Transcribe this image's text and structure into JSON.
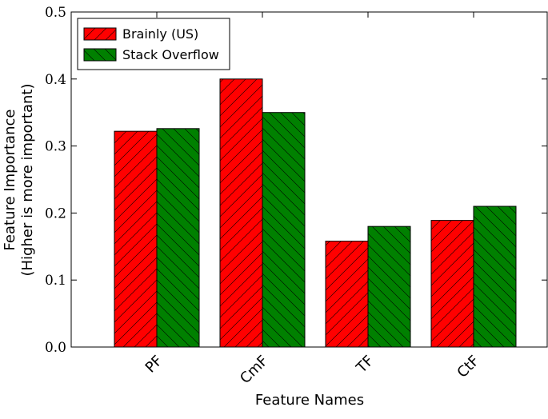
{
  "chart_data": {
    "type": "bar",
    "xlabel": "Feature Names",
    "ylabel": [
      "Feature Importance",
      "(Higher is more important)"
    ],
    "categories": [
      "PF",
      "CmF",
      "TF",
      "CtF"
    ],
    "series": [
      {
        "name": "Brainly (US)",
        "color": "#ff0000",
        "hatch": "/",
        "values": [
          0.322,
          0.4,
          0.158,
          0.189
        ]
      },
      {
        "name": "Stack Overflow",
        "color": "#008000",
        "hatch": "\\",
        "values": [
          0.326,
          0.35,
          0.18,
          0.21
        ]
      }
    ],
    "ylim": [
      0,
      0.5
    ],
    "yticks": [
      {
        "value": 0,
        "label": "0.0"
      },
      {
        "value": 0.1,
        "label": "0.1"
      },
      {
        "value": 0.2,
        "label": "0.2"
      },
      {
        "value": 0.3,
        "label": "0.3"
      },
      {
        "value": 0.4,
        "label": "0.4"
      },
      {
        "value": 0.5,
        "label": "0.5"
      }
    ],
    "legend": "upper left",
    "grid": false
  }
}
